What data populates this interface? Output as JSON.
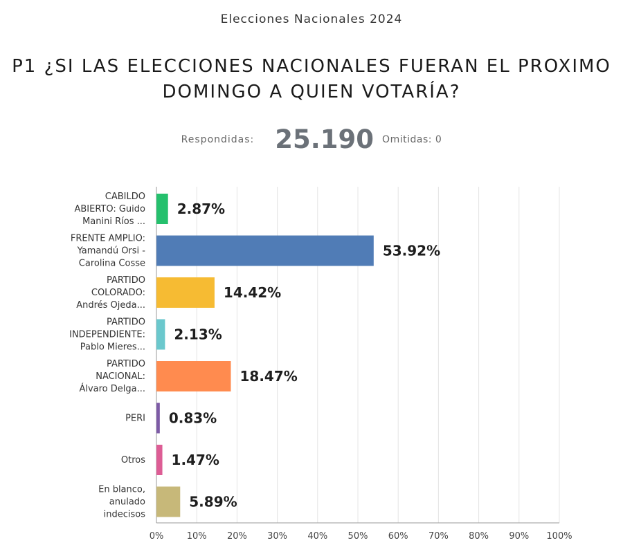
{
  "header": {
    "survey_name": "Elecciones Nacionales 2024",
    "question_line1": "P1 ¿SI LAS ELECCIONES NACIONALES FUERAN EL PROXIMO",
    "question_line2": "DOMINGO A QUIEN VOTARÍA?"
  },
  "stats": {
    "answered_label": "Respondidas:",
    "answered_value": "25.190",
    "skipped_text": "Omitidas: 0"
  },
  "chart_data": {
    "type": "bar",
    "orientation": "horizontal",
    "categories": [
      [
        "CABILDO",
        "ABIERTO: Guido",
        "Manini Ríos ..."
      ],
      [
        "FRENTE AMPLIO:",
        "Yamandú Orsi -",
        "Carolina Cosse"
      ],
      [
        "PARTIDO",
        "COLORADO:",
        "Andrés Ojeda..."
      ],
      [
        "PARTIDO",
        "INDEPENDIENTE:",
        "Pablo Mieres..."
      ],
      [
        "PARTIDO",
        "NACIONAL:",
        "Álvaro Delga..."
      ],
      [
        "PERI"
      ],
      [
        "Otros"
      ],
      [
        "En blanco,",
        "anulado",
        "indecisos"
      ]
    ],
    "values": [
      2.87,
      53.92,
      14.42,
      2.13,
      18.47,
      0.83,
      1.47,
      5.89
    ],
    "value_labels": [
      "2.87%",
      "53.92%",
      "14.42%",
      "2.13%",
      "18.47%",
      "0.83%",
      "1.47%",
      "5.89%"
    ],
    "colors": [
      "#25c06d",
      "#507cb6",
      "#f6bb33",
      "#6bc8cd",
      "#ff8b4f",
      "#7d5ba6",
      "#dd5d95",
      "#c7b879"
    ],
    "xlim": [
      0,
      100
    ],
    "x_ticks": [
      "0%",
      "10%",
      "20%",
      "30%",
      "40%",
      "50%",
      "60%",
      "70%",
      "80%",
      "90%",
      "100%"
    ],
    "grid": true
  }
}
